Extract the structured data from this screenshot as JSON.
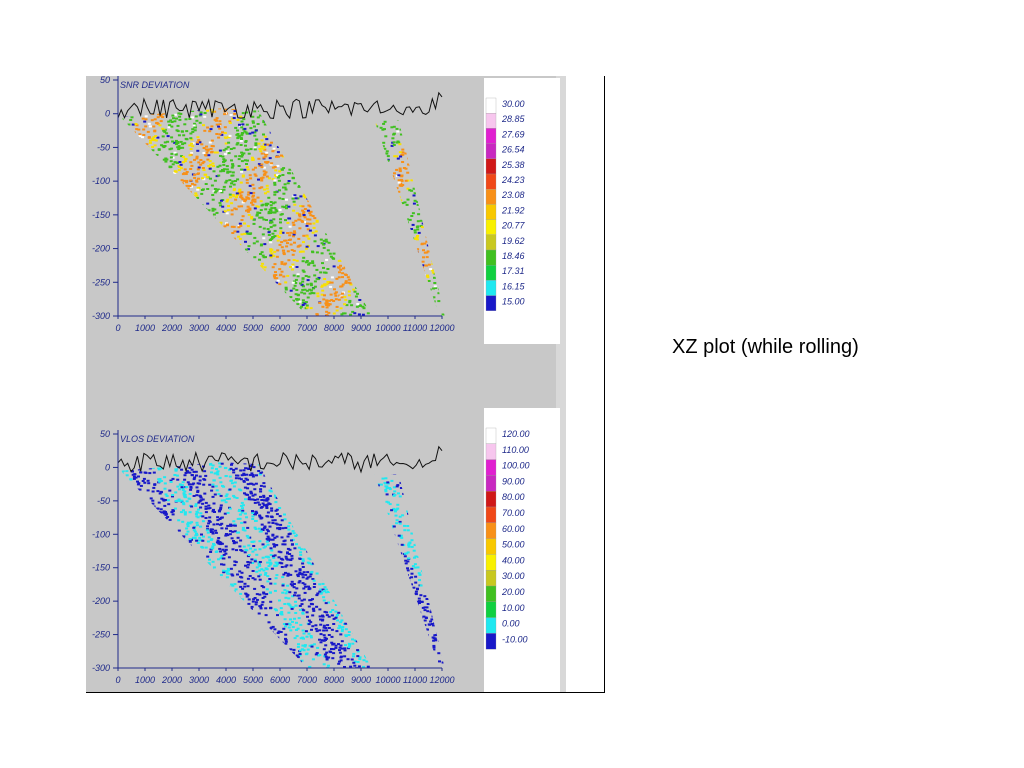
{
  "caption": "XZ plot (while rolling)",
  "colors": {
    "background_gray": "#c8c8c8",
    "axis": "#1f2a8a",
    "terrain": "#111111"
  },
  "chart_data": [
    {
      "type": "heatmap",
      "title": "SNR DEVIATION",
      "xlabel": "",
      "ylabel": "",
      "xlim": [
        0,
        12000
      ],
      "ylim": [
        -300,
        50
      ],
      "x_ticks": [
        "0",
        "1000",
        "2000",
        "3000",
        "4000",
        "5000",
        "6000",
        "7000",
        "8000",
        "9000",
        "10000",
        "11000",
        "12000"
      ],
      "y_ticks": [
        "50",
        "0",
        "-50",
        "-100",
        "-150",
        "-200",
        "-250",
        "-300"
      ],
      "y_tick_values": [
        50,
        0,
        -50,
        -100,
        -150,
        -200,
        -250,
        -300
      ],
      "colorbar": {
        "labels": [
          "30.00",
          "28.85",
          "27.69",
          "26.54",
          "25.38",
          "24.23",
          "23.08",
          "21.92",
          "20.77",
          "19.62",
          "18.46",
          "17.31",
          "16.15",
          "15.00"
        ],
        "colors": [
          "#ffffff",
          "#f7c6ee",
          "#e020d0",
          "#c828c0",
          "#d01818",
          "#f04818",
          "#f89018",
          "#f8c800",
          "#f8f000",
          "#c8c820",
          "#40c020",
          "#10d040",
          "#20e8f0",
          "#1818c8"
        ]
      },
      "dominant_colors": [
        "#f8e000",
        "#40c020",
        "#f89018",
        "#1818c8",
        "#ffffff"
      ]
    },
    {
      "type": "heatmap",
      "title": "VLOS DEVIATION",
      "xlabel": "",
      "ylabel": "",
      "xlim": [
        0,
        12000
      ],
      "ylim": [
        -300,
        50
      ],
      "x_ticks": [
        "0",
        "1000",
        "2000",
        "3000",
        "4000",
        "5000",
        "6000",
        "7000",
        "8000",
        "9000",
        "10000",
        "11000",
        "12000"
      ],
      "y_ticks": [
        "50",
        "0",
        "-50",
        "-100",
        "-150",
        "-200",
        "-250",
        "-300"
      ],
      "y_tick_values": [
        50,
        0,
        -50,
        -100,
        -150,
        -200,
        -250,
        -300
      ],
      "colorbar": {
        "labels": [
          "120.00",
          "110.00",
          "100.00",
          "90.00",
          "80.00",
          "70.00",
          "60.00",
          "50.00",
          "40.00",
          "30.00",
          "20.00",
          "10.00",
          "0.00",
          "-10.00"
        ],
        "colors": [
          "#ffffff",
          "#f7c6ee",
          "#e020d0",
          "#c828c0",
          "#d01818",
          "#f04818",
          "#f89018",
          "#f8c800",
          "#f8f000",
          "#c8c820",
          "#40c020",
          "#10d040",
          "#20e8f0",
          "#1818c8"
        ]
      },
      "dominant_colors": [
        "#20e8f0",
        "#1818c8"
      ]
    }
  ]
}
